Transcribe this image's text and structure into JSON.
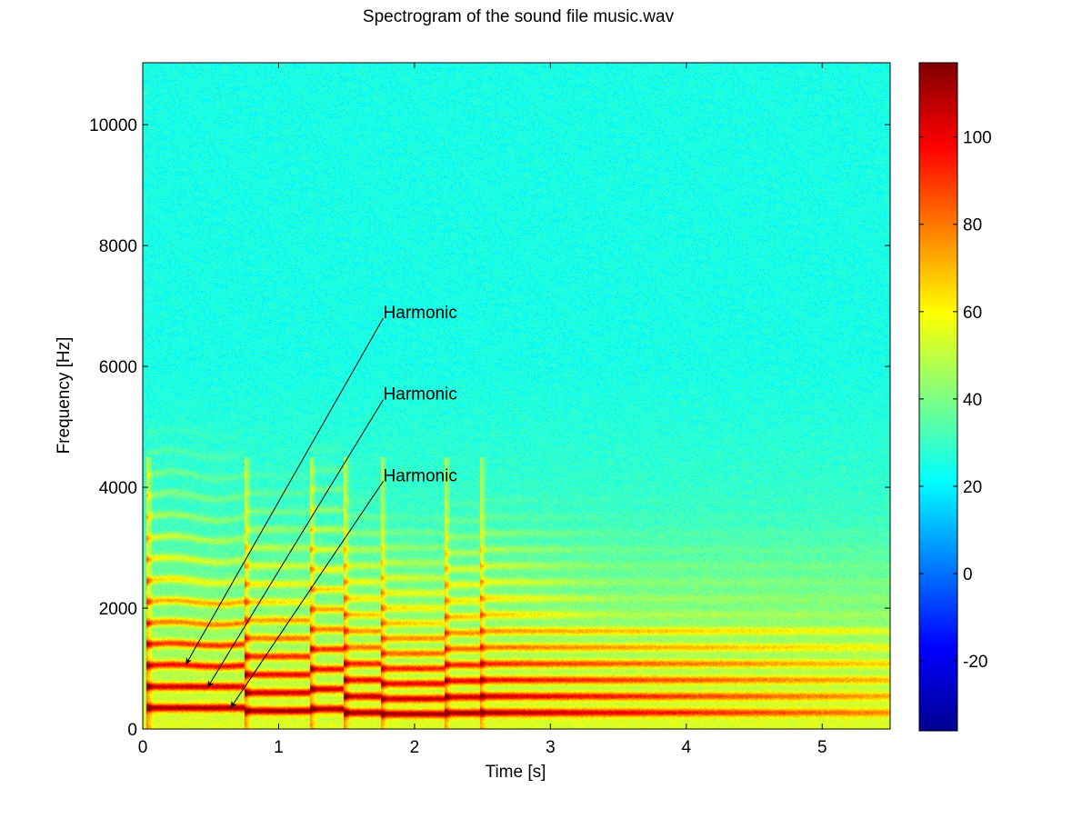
{
  "chart_data": {
    "type": "heatmap",
    "title": "Spectrogram of the sound file music.wav",
    "xlabel": "Time [s]",
    "ylabel": "Frequency [Hz]",
    "xlim": [
      0,
      5.5
    ],
    "ylim": [
      0,
      11025
    ],
    "x_ticks": [
      0,
      1,
      2,
      3,
      4,
      5
    ],
    "y_ticks": [
      0,
      2000,
      4000,
      6000,
      8000,
      10000
    ],
    "colorbar": {
      "colormap": "jet",
      "range": [
        -36,
        117
      ],
      "ticks": [
        -20,
        0,
        20,
        40,
        60,
        80,
        100
      ]
    },
    "grid": false,
    "annotations": [
      {
        "text": "Harmonic",
        "text_x": 1.77,
        "text_y": 6800,
        "arrow_to": [
          0.32,
          1080
        ]
      },
      {
        "text": "Harmonic",
        "text_x": 1.77,
        "text_y": 5450,
        "arrow_to": [
          0.48,
          700
        ]
      },
      {
        "text": "Harmonic",
        "text_x": 1.77,
        "text_y": 4100,
        "arrow_to": [
          0.65,
          360
        ]
      }
    ],
    "notes": [
      {
        "t_start": 0.03,
        "t_end": 0.75,
        "f0": 350
      },
      {
        "t_start": 0.75,
        "t_end": 1.23,
        "f0": 300
      },
      {
        "t_start": 1.23,
        "t_end": 1.48,
        "f0": 330
      },
      {
        "t_start": 1.48,
        "t_end": 1.75,
        "f0": 270
      },
      {
        "t_start": 1.75,
        "t_end": 2.22,
        "f0": 250
      },
      {
        "t_start": 2.22,
        "t_end": 2.48,
        "f0": 265
      },
      {
        "t_start": 2.48,
        "t_end": 5.5,
        "f0": 270
      }
    ]
  }
}
